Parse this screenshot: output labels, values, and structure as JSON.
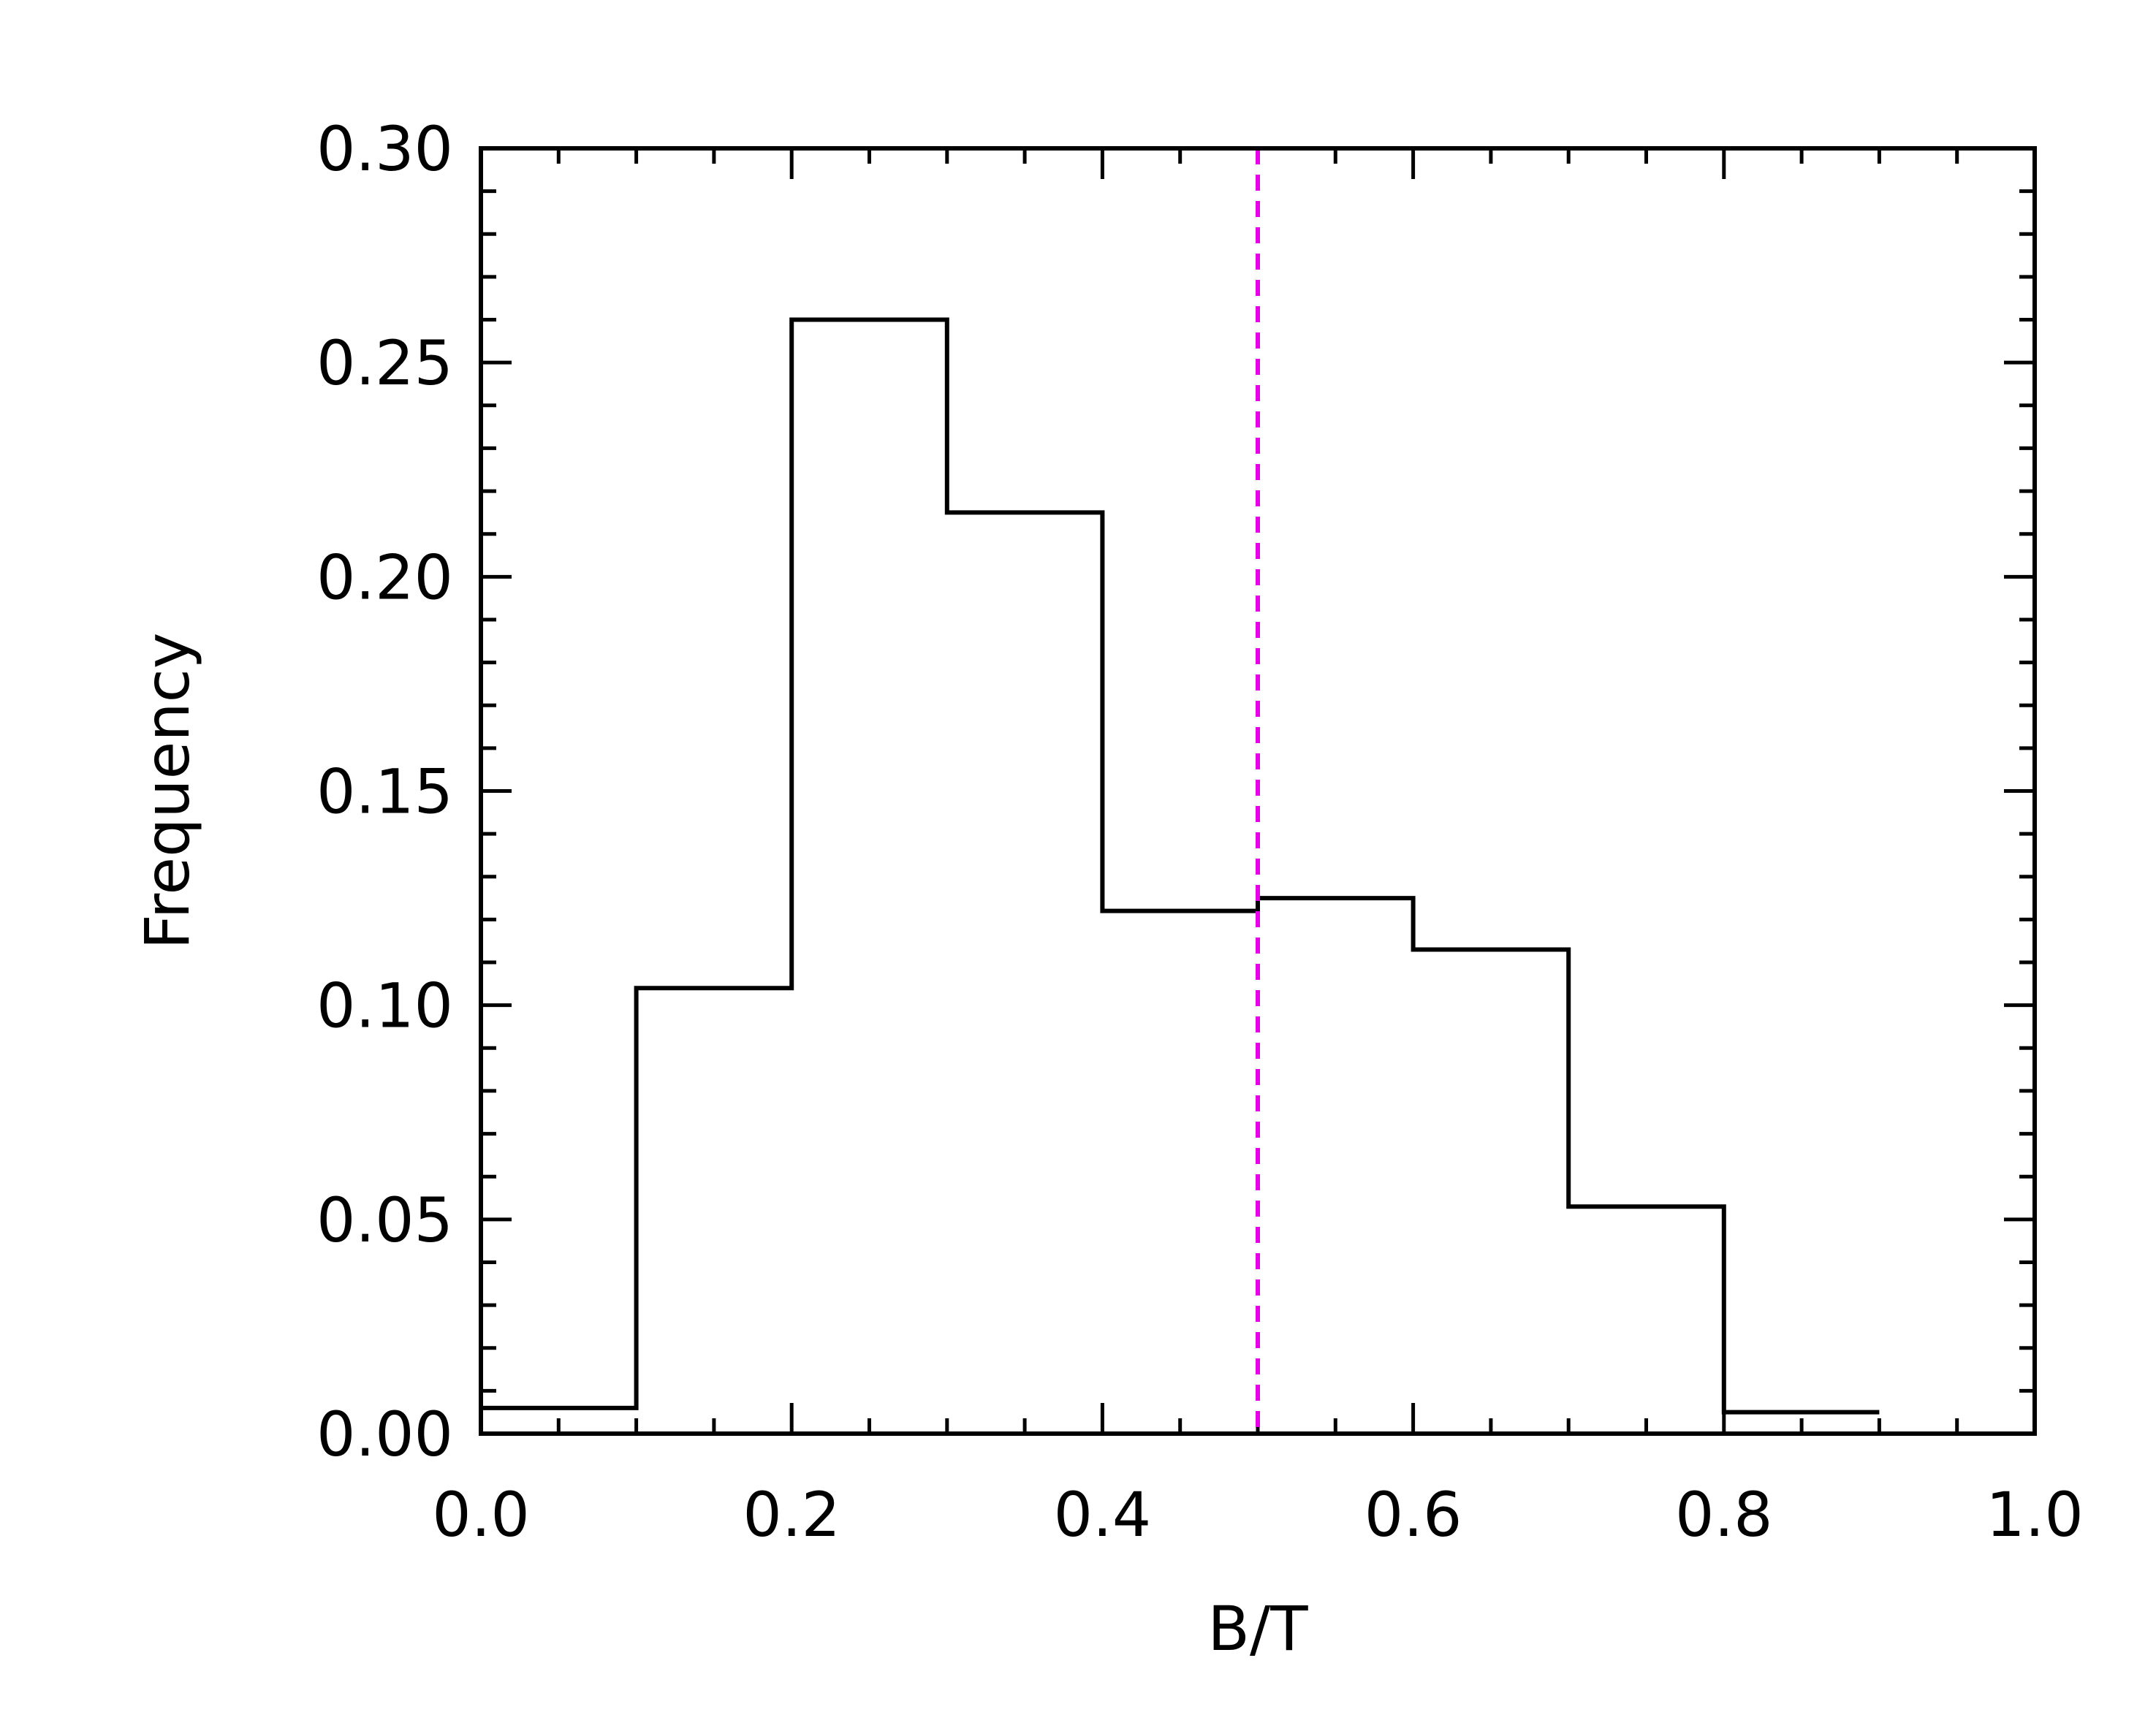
{
  "chart_data": {
    "type": "histogram",
    "xlabel": "B/T",
    "ylabel": "Frequency",
    "xlim": [
      0.0,
      1.0
    ],
    "ylim": [
      0.0,
      0.3
    ],
    "x_ticks": [
      0.0,
      0.2,
      0.4,
      0.6,
      0.8,
      1.0
    ],
    "x_tick_labels": [
      "0.0",
      "0.2",
      "0.4",
      "0.6",
      "0.8",
      "1.0"
    ],
    "y_ticks": [
      0.0,
      0.05,
      0.1,
      0.15,
      0.2,
      0.25,
      0.3
    ],
    "y_tick_labels": [
      "0.00",
      "0.05",
      "0.10",
      "0.15",
      "0.20",
      "0.25",
      "0.30"
    ],
    "bin_edges": [
      0.0,
      0.1,
      0.2,
      0.3,
      0.4,
      0.5,
      0.6,
      0.7,
      0.8,
      0.9
    ],
    "values": [
      0.006,
      0.104,
      0.26,
      0.215,
      0.122,
      0.125,
      0.113,
      0.053,
      0.005
    ],
    "reference_line": {
      "x": 0.5,
      "style": "dashed",
      "color": "#e600e6"
    },
    "grid": false,
    "line_color": "#000000"
  }
}
